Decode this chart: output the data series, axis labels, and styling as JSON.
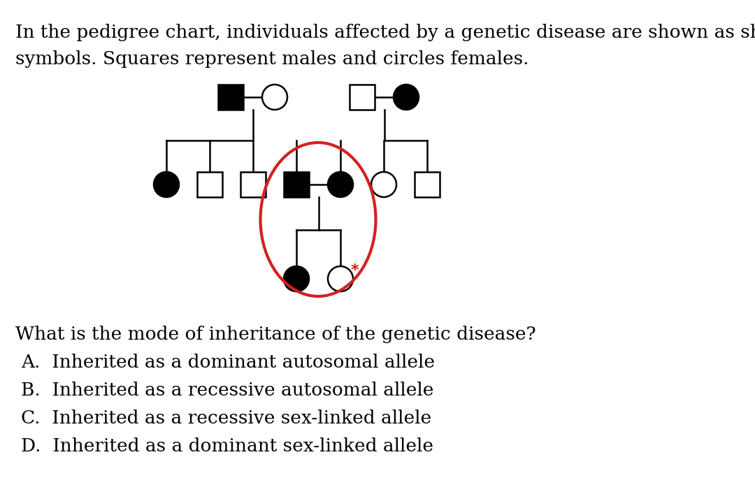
{
  "intro_line1": "In the pedigree chart, individuals affected by a genetic disease are shown as shaded",
  "intro_line2": "symbols. Squares represent males and circles females.",
  "question": "What is the mode of inheritance of the genetic disease?",
  "options": [
    "A.  Inherited as a dominant autosomal allele",
    "B.  Inherited as a recessive autosomal allele",
    "C.  Inherited as a recessive sex-linked allele",
    "D.  Inherited as a dominant sex-linked allele"
  ],
  "bg_color": "#ffffff",
  "text_color": "#000000",
  "line_color": "#000000",
  "red_color": "#d42020",
  "asterisk_color": "#cc2200",
  "lw": 1.8,
  "r": 0.22,
  "sq": 0.22
}
